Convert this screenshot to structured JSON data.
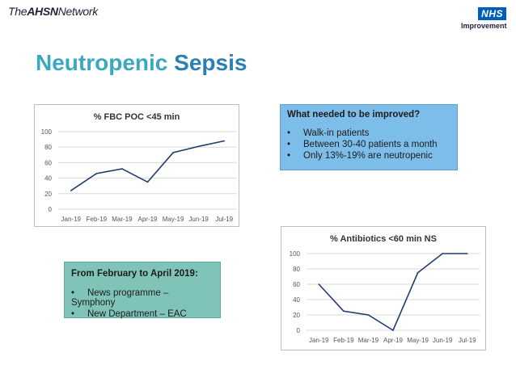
{
  "header": {
    "brand_prefix": "The",
    "brand_bold": "AHSN",
    "brand_suffix": "Network",
    "nhs_label": "NHS",
    "nhs_sub": "Improvement"
  },
  "title": {
    "part1": "Neutropenic",
    "part2": "Sepsis"
  },
  "improve_box": {
    "heading": "What needed to be improved?",
    "items": [
      "Walk-in patients",
      "Between 30-40 patients a month",
      "Only 13%-19% are neutropenic"
    ]
  },
  "feb_box": {
    "heading": "From February to April 2019:",
    "items": [
      "News programme – Symphony",
      "New Department – EAC"
    ]
  },
  "bullet": "•",
  "colors": {
    "line": "#1f3b6e",
    "grid": "#d9d9d9",
    "title_teal": "#3aa9bf",
    "title_blue": "#2a7fb5",
    "nhs_blue": "#005eb8"
  },
  "chart_data": [
    {
      "type": "line",
      "title": "% FBC POC <45 min",
      "categories": [
        "Jan-19",
        "Feb-19",
        "Mar-19",
        "Apr-19",
        "May-19",
        "Jun-19",
        "Jul-19"
      ],
      "values": [
        24,
        46,
        52,
        35,
        73,
        81,
        88
      ],
      "ylim": [
        0,
        100
      ],
      "yticks": [
        0,
        20,
        40,
        60,
        80,
        100
      ],
      "grid": true
    },
    {
      "type": "line",
      "title": "% Antibiotics <60 min NS",
      "categories": [
        "Jan-19",
        "Feb-19",
        "Mar-19",
        "Apr-19",
        "May-19",
        "Jun-19",
        "Jul-19"
      ],
      "values": [
        60,
        25,
        20,
        0,
        75,
        100,
        100
      ],
      "ylim": [
        0,
        100
      ],
      "yticks": [
        0,
        20,
        40,
        60,
        80,
        100
      ],
      "grid": true
    }
  ]
}
